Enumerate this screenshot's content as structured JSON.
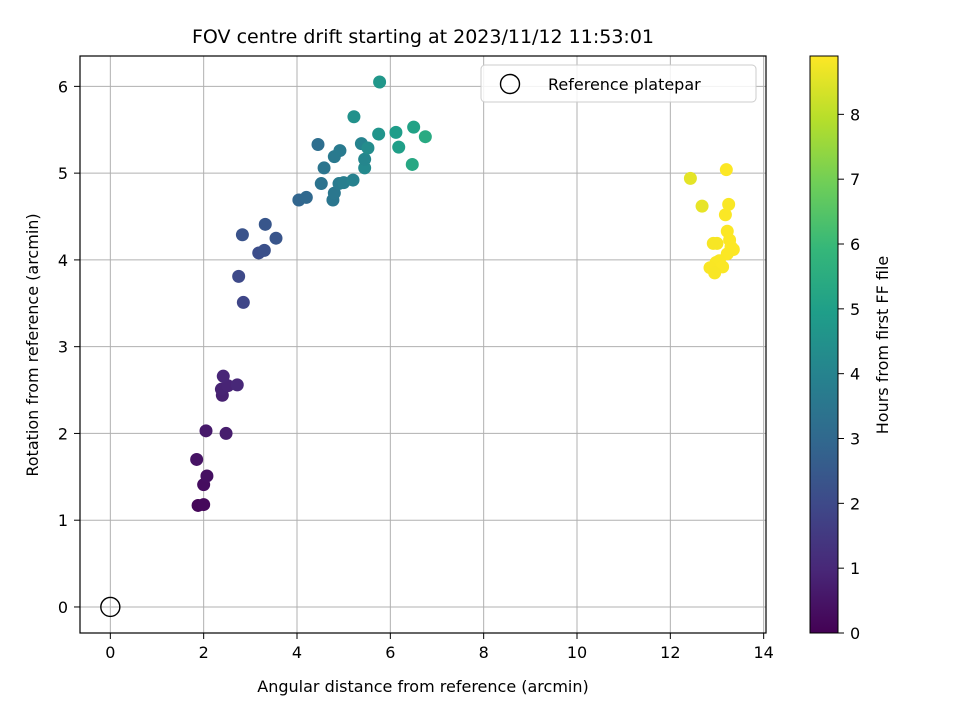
{
  "chart_data": {
    "type": "scatter",
    "title": "FOV centre drift starting at 2023/11/12 11:53:01",
    "xlabel": "Angular distance from reference (arcmin)",
    "ylabel": "Rotation from reference (arcmin)",
    "xlim": [
      -0.65,
      14.05
    ],
    "ylim": [
      -0.3,
      6.35
    ],
    "xticks": [
      0,
      2,
      4,
      6,
      8,
      10,
      12,
      14
    ],
    "yticks": [
      0,
      1,
      2,
      3,
      4,
      5,
      6
    ],
    "grid": true,
    "legend": {
      "placement": "top-right",
      "entries": [
        "Reference platepar"
      ]
    },
    "reference_point": {
      "name": "Reference platepar",
      "x": 0,
      "y": 0,
      "marker": "open-circle"
    },
    "colorbar": {
      "label": "Hours from first FF file",
      "range": [
        0,
        8.9
      ],
      "ticks": [
        0,
        1,
        2,
        3,
        4,
        5,
        6,
        7,
        8
      ],
      "colormap": "viridis"
    },
    "points": [
      {
        "x": 1.88,
        "y": 1.17,
        "t": 0.15
      },
      {
        "x": 2.0,
        "y": 1.18,
        "t": 0.2
      },
      {
        "x": 2.0,
        "y": 1.41,
        "t": 0.3
      },
      {
        "x": 2.07,
        "y": 1.51,
        "t": 0.35
      },
      {
        "x": 1.85,
        "y": 1.7,
        "t": 0.45
      },
      {
        "x": 2.05,
        "y": 2.03,
        "t": 0.6
      },
      {
        "x": 2.48,
        "y": 2.0,
        "t": 0.7
      },
      {
        "x": 2.4,
        "y": 2.44,
        "t": 0.8
      },
      {
        "x": 2.38,
        "y": 2.51,
        "t": 0.85
      },
      {
        "x": 2.52,
        "y": 2.55,
        "t": 0.9
      },
      {
        "x": 2.42,
        "y": 2.66,
        "t": 0.95
      },
      {
        "x": 2.72,
        "y": 2.56,
        "t": 1.0
      },
      {
        "x": 2.85,
        "y": 3.51,
        "t": 1.9
      },
      {
        "x": 2.75,
        "y": 3.81,
        "t": 2.0
      },
      {
        "x": 3.18,
        "y": 4.08,
        "t": 2.1
      },
      {
        "x": 3.3,
        "y": 4.11,
        "t": 2.2
      },
      {
        "x": 2.83,
        "y": 4.29,
        "t": 2.3
      },
      {
        "x": 3.55,
        "y": 4.25,
        "t": 2.35
      },
      {
        "x": 3.32,
        "y": 4.41,
        "t": 2.4
      },
      {
        "x": 4.04,
        "y": 4.69,
        "t": 2.9
      },
      {
        "x": 4.2,
        "y": 4.72,
        "t": 3.0
      },
      {
        "x": 4.77,
        "y": 4.69,
        "t": 3.5
      },
      {
        "x": 4.8,
        "y": 4.77,
        "t": 3.55
      },
      {
        "x": 4.52,
        "y": 4.88,
        "t": 3.4
      },
      {
        "x": 4.9,
        "y": 4.88,
        "t": 3.7
      },
      {
        "x": 5.0,
        "y": 4.89,
        "t": 3.8
      },
      {
        "x": 5.2,
        "y": 4.92,
        "t": 3.9
      },
      {
        "x": 4.58,
        "y": 5.06,
        "t": 3.45
      },
      {
        "x": 4.8,
        "y": 5.19,
        "t": 3.6
      },
      {
        "x": 4.92,
        "y": 5.26,
        "t": 3.65
      },
      {
        "x": 4.45,
        "y": 5.33,
        "t": 3.2
      },
      {
        "x": 5.45,
        "y": 5.06,
        "t": 4.2
      },
      {
        "x": 5.45,
        "y": 5.16,
        "t": 4.1
      },
      {
        "x": 5.38,
        "y": 5.34,
        "t": 4.0
      },
      {
        "x": 5.52,
        "y": 5.29,
        "t": 4.3
      },
      {
        "x": 5.22,
        "y": 5.65,
        "t": 4.5
      },
      {
        "x": 5.75,
        "y": 5.45,
        "t": 4.6
      },
      {
        "x": 5.77,
        "y": 6.05,
        "t": 4.7
      },
      {
        "x": 6.12,
        "y": 5.47,
        "t": 4.9
      },
      {
        "x": 6.18,
        "y": 5.3,
        "t": 5.0
      },
      {
        "x": 6.5,
        "y": 5.53,
        "t": 5.1
      },
      {
        "x": 6.47,
        "y": 5.1,
        "t": 5.3
      },
      {
        "x": 6.75,
        "y": 5.42,
        "t": 5.4
      },
      {
        "x": 12.43,
        "y": 4.94,
        "t": 8.55
      },
      {
        "x": 12.68,
        "y": 4.62,
        "t": 8.6
      },
      {
        "x": 13.2,
        "y": 5.04,
        "t": 8.88
      },
      {
        "x": 13.25,
        "y": 4.64,
        "t": 8.85
      },
      {
        "x": 13.18,
        "y": 4.52,
        "t": 8.86
      },
      {
        "x": 13.22,
        "y": 4.33,
        "t": 8.87
      },
      {
        "x": 12.92,
        "y": 4.19,
        "t": 8.82
      },
      {
        "x": 13.0,
        "y": 4.19,
        "t": 8.82
      },
      {
        "x": 13.27,
        "y": 4.23,
        "t": 8.88
      },
      {
        "x": 13.3,
        "y": 4.15,
        "t": 8.88
      },
      {
        "x": 13.35,
        "y": 4.12,
        "t": 8.88
      },
      {
        "x": 13.22,
        "y": 4.07,
        "t": 8.87
      },
      {
        "x": 13.05,
        "y": 3.99,
        "t": 8.86
      },
      {
        "x": 12.98,
        "y": 3.97,
        "t": 8.85
      },
      {
        "x": 12.85,
        "y": 3.91,
        "t": 8.84
      },
      {
        "x": 13.12,
        "y": 3.92,
        "t": 8.86
      },
      {
        "x": 12.95,
        "y": 3.85,
        "t": 8.83
      }
    ]
  }
}
